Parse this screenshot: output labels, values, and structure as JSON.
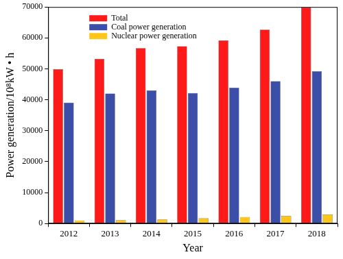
{
  "chart_data": {
    "type": "bar",
    "x_label": "Year",
    "y_label": "Power generation/10⁸kW • h",
    "categories": [
      "2012",
      "2013",
      "2014",
      "2015",
      "2016",
      "2017",
      "2018"
    ],
    "series": [
      {
        "name": "Total",
        "color": "#ff1a1a",
        "values": [
          49900,
          53200,
          56700,
          57300,
          59200,
          62700,
          69900
        ]
      },
      {
        "name": "Coal power generation",
        "color": "#3c4fa8",
        "values": [
          39100,
          42000,
          43000,
          42200,
          43900,
          46000,
          49200
        ]
      },
      {
        "name": "Nuclear power generation",
        "color": "#ffc61a",
        "values": [
          980,
          1100,
          1300,
          1700,
          2100,
          2500,
          2900
        ]
      }
    ],
    "ylim": [
      0,
      70000
    ],
    "yticks": [
      0,
      10000,
      20000,
      30000,
      40000,
      50000,
      60000,
      70000
    ],
    "grid": false,
    "legend": "upper left"
  }
}
